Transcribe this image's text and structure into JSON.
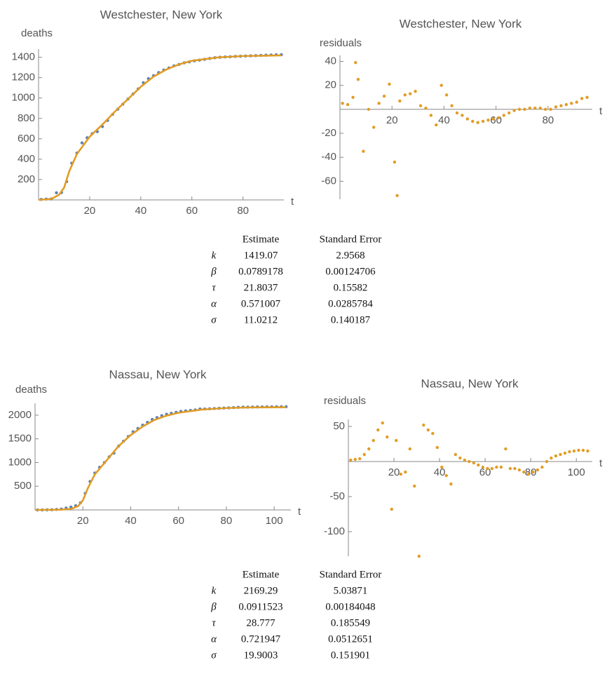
{
  "chart_data": [
    {
      "type": "scatter",
      "title": "Westchester, New York",
      "ylabel": "deaths",
      "xlabel": "t",
      "xlim": [
        0,
        96
      ],
      "ylim": [
        0,
        1480
      ],
      "xticks": [
        20,
        40,
        60,
        80
      ],
      "yticks": [
        200,
        400,
        600,
        800,
        1000,
        1200,
        1400
      ],
      "series": [
        {
          "color": "#5e81b5",
          "x": [
            1,
            3,
            5,
            7,
            9,
            11,
            13,
            15,
            17,
            19,
            21,
            23,
            25,
            27,
            29,
            31,
            33,
            35,
            37,
            39,
            41,
            43,
            45,
            47,
            49,
            51,
            53,
            55,
            57,
            59,
            61,
            63,
            65,
            67,
            69,
            71,
            73,
            75,
            77,
            79,
            81,
            83,
            85,
            87,
            89,
            91,
            93,
            95
          ],
          "values": [
            5,
            8,
            10,
            70,
            72,
            180,
            360,
            460,
            560,
            610,
            650,
            670,
            720,
            780,
            840,
            890,
            940,
            990,
            1040,
            1090,
            1150,
            1190,
            1220,
            1250,
            1275,
            1295,
            1315,
            1330,
            1345,
            1355,
            1365,
            1372,
            1380,
            1388,
            1395,
            1400,
            1403,
            1405,
            1408,
            1410,
            1412,
            1414,
            1416,
            1418,
            1420,
            1422,
            1424,
            1425
          ]
        },
        {
          "type": "line",
          "color": "#e19c24",
          "x": [
            0,
            5,
            8,
            10,
            12,
            15,
            20,
            25,
            30,
            35,
            40,
            45,
            50,
            55,
            60,
            70,
            80,
            95
          ],
          "values": [
            0,
            10,
            50,
            120,
            280,
            450,
            620,
            740,
            870,
            990,
            1110,
            1210,
            1280,
            1330,
            1365,
            1398,
            1412,
            1418
          ]
        }
      ]
    },
    {
      "type": "scatter",
      "title": "Westchester, New York",
      "ylabel": "residuals",
      "xlabel": "t",
      "xlim": [
        0,
        97
      ],
      "ylim": [
        -75,
        45
      ],
      "xticks": [
        20,
        40,
        60,
        80
      ],
      "yticks": [
        -60,
        -40,
        -20,
        20,
        40
      ],
      "series": [
        {
          "color": "#e19c24",
          "x": [
            1,
            3,
            5,
            6,
            7,
            9,
            11,
            13,
            15,
            17,
            19,
            21,
            22,
            23,
            25,
            27,
            29,
            31,
            33,
            35,
            37,
            39,
            41,
            43,
            45,
            47,
            49,
            51,
            53,
            55,
            57,
            59,
            61,
            63,
            65,
            67,
            69,
            71,
            73,
            75,
            77,
            79,
            81,
            83,
            85,
            87,
            89,
            91,
            93,
            95
          ],
          "values": [
            5,
            4,
            10,
            39,
            25,
            -35,
            0,
            -15,
            5,
            11,
            21,
            -44,
            -72,
            7,
            12,
            13,
            15,
            3,
            1,
            -5,
            -13,
            20,
            12,
            3,
            -3,
            -5,
            -8,
            -10,
            -11,
            -10,
            -9,
            -8,
            -7,
            -5,
            -3,
            -1,
            0,
            0,
            1,
            1,
            1,
            0,
            0,
            2,
            3,
            4,
            5,
            6,
            9,
            10
          ]
        }
      ]
    },
    {
      "type": "scatter",
      "title": "Nassau, New York",
      "ylabel": "deaths",
      "xlabel": "t",
      "xlim": [
        0,
        107
      ],
      "ylim": [
        0,
        2250
      ],
      "xticks": [
        20,
        40,
        60,
        80,
        100
      ],
      "yticks": [
        500,
        1000,
        1500,
        2000
      ],
      "series": [
        {
          "color": "#5e81b5",
          "x": [
            1,
            3,
            5,
            7,
            9,
            11,
            13,
            15,
            17,
            19,
            21,
            23,
            25,
            27,
            29,
            31,
            33,
            35,
            37,
            39,
            41,
            43,
            45,
            47,
            49,
            51,
            53,
            55,
            57,
            59,
            61,
            63,
            65,
            67,
            69,
            71,
            73,
            75,
            77,
            79,
            81,
            83,
            85,
            87,
            89,
            91,
            93,
            95,
            97,
            99,
            101,
            103,
            105
          ],
          "values": [
            0,
            0,
            2,
            5,
            10,
            20,
            40,
            60,
            90,
            150,
            350,
            600,
            780,
            900,
            1000,
            1120,
            1200,
            1350,
            1450,
            1550,
            1650,
            1720,
            1790,
            1850,
            1910,
            1950,
            1990,
            2020,
            2040,
            2060,
            2080,
            2090,
            2100,
            2110,
            2130,
            2130,
            2135,
            2140,
            2145,
            2150,
            2155,
            2160,
            2165,
            2170,
            2170,
            2172,
            2174,
            2175,
            2176,
            2177,
            2178,
            2178,
            2178
          ]
        },
        {
          "type": "line",
          "color": "#e19c24",
          "x": [
            0,
            10,
            15,
            18,
            20,
            22,
            25,
            30,
            35,
            40,
            45,
            50,
            55,
            60,
            70,
            80,
            90,
            105
          ],
          "values": [
            0,
            5,
            20,
            80,
            200,
            450,
            750,
            1050,
            1350,
            1580,
            1760,
            1900,
            1990,
            2050,
            2120,
            2150,
            2163,
            2168
          ]
        }
      ]
    },
    {
      "type": "scatter",
      "title": "Nassau, New York",
      "ylabel": "residuals",
      "xlabel": "t",
      "xlim": [
        0,
        107
      ],
      "ylim": [
        -135,
        60
      ],
      "xticks": [
        20,
        40,
        60,
        80,
        100
      ],
      "yticks": [
        -100,
        -50,
        50
      ],
      "series": [
        {
          "color": "#e19c24",
          "x": [
            1,
            3,
            5,
            7,
            9,
            11,
            13,
            15,
            17,
            19,
            21,
            23,
            25,
            27,
            29,
            31,
            33,
            35,
            37,
            39,
            41,
            43,
            45,
            47,
            49,
            51,
            53,
            55,
            57,
            59,
            61,
            63,
            65,
            67,
            69,
            71,
            73,
            75,
            77,
            79,
            81,
            83,
            85,
            87,
            89,
            91,
            93,
            95,
            97,
            99,
            101,
            103,
            105
          ],
          "values": [
            2,
            3,
            4,
            10,
            18,
            30,
            45,
            55,
            35,
            -68,
            30,
            -18,
            -15,
            18,
            -35,
            -135,
            52,
            45,
            40,
            20,
            -8,
            -20,
            -32,
            10,
            5,
            2,
            0,
            -2,
            -5,
            -8,
            -10,
            -10,
            -8,
            -8,
            18,
            -10,
            -10,
            -12,
            -15,
            -18,
            -15,
            -12,
            -8,
            0,
            5,
            8,
            10,
            12,
            14,
            15,
            16,
            16,
            15
          ]
        }
      ]
    }
  ],
  "tables": [
    {
      "header": [
        "Estimate",
        "Standard Error"
      ],
      "rows": [
        [
          "k",
          "1419.07",
          "2.9568"
        ],
        [
          "β",
          "0.0789178",
          "0.00124706"
        ],
        [
          "τ",
          "21.8037",
          "0.15582"
        ],
        [
          "α",
          "0.571007",
          "0.0285784"
        ],
        [
          "σ",
          "11.0212",
          "0.140187"
        ]
      ]
    },
    {
      "header": [
        "Estimate",
        "Standard Error"
      ],
      "rows": [
        [
          "k",
          "2169.29",
          "5.03871"
        ],
        [
          "β",
          "0.0911523",
          "0.00184048"
        ],
        [
          "τ",
          "28.777",
          "0.185549"
        ],
        [
          "α",
          "0.721947",
          "0.0512651"
        ],
        [
          "σ",
          "19.9003",
          "0.151901"
        ]
      ]
    }
  ]
}
